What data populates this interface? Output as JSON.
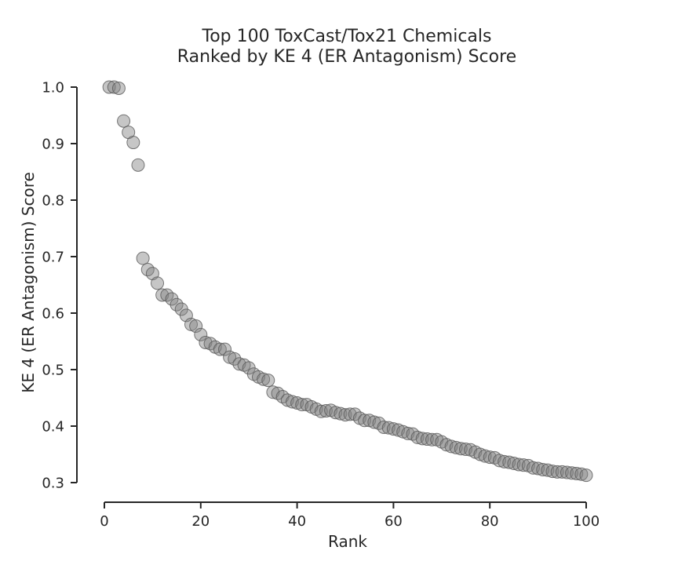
{
  "chart_data": {
    "type": "scatter",
    "title_lines": [
      "Top 100 ToxCast/Tox21 Chemicals",
      "Ranked by KE 4 (ER Antagonism) Score"
    ],
    "xlabel": "Rank",
    "ylabel": "KE 4 (ER Antagonism) Score",
    "xlim": [
      0,
      100
    ],
    "ylim": [
      0.3,
      1.0
    ],
    "xticks": [
      0,
      20,
      40,
      60,
      80,
      100
    ],
    "xtick_labels": [
      "0",
      "20",
      "40",
      "60",
      "80",
      "100"
    ],
    "yticks": [
      0.3,
      0.4,
      0.5,
      0.6,
      0.7,
      0.8,
      0.9,
      1.0
    ],
    "ytick_labels": [
      "0.3",
      "0.4",
      "0.5",
      "0.6",
      "0.7",
      "0.8",
      "0.9",
      "1.0"
    ],
    "grid": false,
    "marker_color": "#808080",
    "marker_edge_color": "#595959",
    "x": [
      1,
      2,
      3,
      4,
      5,
      6,
      7,
      8,
      9,
      10,
      11,
      12,
      13,
      14,
      15,
      16,
      17,
      18,
      19,
      20,
      21,
      22,
      23,
      24,
      25,
      26,
      27,
      28,
      29,
      30,
      31,
      32,
      33,
      34,
      35,
      36,
      37,
      38,
      39,
      40,
      41,
      42,
      43,
      44,
      45,
      46,
      47,
      48,
      49,
      50,
      51,
      52,
      53,
      54,
      55,
      56,
      57,
      58,
      59,
      60,
      61,
      62,
      63,
      64,
      65,
      66,
      67,
      68,
      69,
      70,
      71,
      72,
      73,
      74,
      75,
      76,
      77,
      78,
      79,
      80,
      81,
      82,
      83,
      84,
      85,
      86,
      87,
      88,
      89,
      90,
      91,
      92,
      93,
      94,
      95,
      96,
      97,
      98,
      99,
      100
    ],
    "y": [
      1.0,
      1.0,
      0.998,
      0.94,
      0.92,
      0.902,
      0.862,
      0.697,
      0.677,
      0.67,
      0.653,
      0.632,
      0.632,
      0.625,
      0.615,
      0.607,
      0.596,
      0.58,
      0.577,
      0.562,
      0.548,
      0.546,
      0.54,
      0.536,
      0.536,
      0.522,
      0.519,
      0.51,
      0.508,
      0.503,
      0.492,
      0.487,
      0.483,
      0.481,
      0.46,
      0.458,
      0.452,
      0.446,
      0.443,
      0.441,
      0.438,
      0.438,
      0.434,
      0.43,
      0.426,
      0.427,
      0.428,
      0.424,
      0.422,
      0.42,
      0.421,
      0.421,
      0.414,
      0.41,
      0.41,
      0.407,
      0.405,
      0.398,
      0.397,
      0.395,
      0.393,
      0.39,
      0.387,
      0.386,
      0.38,
      0.378,
      0.377,
      0.376,
      0.376,
      0.372,
      0.367,
      0.364,
      0.362,
      0.36,
      0.359,
      0.358,
      0.354,
      0.35,
      0.347,
      0.345,
      0.344,
      0.339,
      0.337,
      0.336,
      0.334,
      0.332,
      0.331,
      0.33,
      0.326,
      0.325,
      0.323,
      0.322,
      0.32,
      0.319,
      0.319,
      0.318,
      0.317,
      0.316,
      0.315,
      0.313
    ]
  }
}
